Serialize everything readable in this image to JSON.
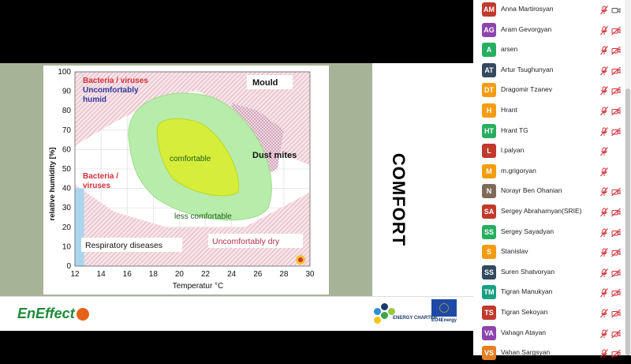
{
  "slide": {
    "title_vertical": "COMFORT",
    "logos": {
      "eneffect": "EnEffect",
      "charter": "ENERGY CHARTER",
      "eu": "EU4Energy"
    }
  },
  "chart_data": {
    "type": "area",
    "xlabel": "Temperatur °C",
    "ylabel": "relative humidity [%]",
    "xlim": [
      12,
      30
    ],
    "ylim": [
      0,
      100
    ],
    "xticks": [
      12,
      14,
      16,
      18,
      20,
      22,
      24,
      26,
      28,
      30
    ],
    "yticks": [
      0,
      10,
      20,
      30,
      40,
      50,
      60,
      70,
      80,
      90,
      100
    ],
    "grid": true,
    "regions": [
      {
        "name": "Bacteria / viruses",
        "color": "#d9534f"
      },
      {
        "name": "Uncomfortably humid",
        "color": "#2f3b9c"
      },
      {
        "name": "Mould",
        "color": "#000000"
      },
      {
        "name": "Dust mites",
        "color": "#000000"
      },
      {
        "name": "comfortable",
        "color": "#c8e63c"
      },
      {
        "name": "less comfortable",
        "color": "#9be08a"
      },
      {
        "name": "Bacteria / viruses",
        "color": "#d9534f"
      },
      {
        "name": "Respiratory diseases",
        "color": "#000000"
      },
      {
        "name": "Uncomfortably dry",
        "color": "#b0304a"
      }
    ],
    "labels": {
      "bacteria_top": "Bacteria / viruses",
      "humid": "Uncomfortably humid",
      "mould": "Mould",
      "dust": "Dust mites",
      "comfortable": "comfortable",
      "less": "less comfortable",
      "bacteria_mid": "Bacteria / viruses",
      "resp": "Respiratory diseases",
      "dry": "Uncomfortably dry"
    }
  },
  "participants": [
    {
      "initials": "AM",
      "name": "Anna Martirosyan",
      "color": "#c0392b",
      "mic": "muted",
      "cam": "on"
    },
    {
      "initials": "AG",
      "name": "Aram Gevorgyan",
      "color": "#8e44ad",
      "mic": "muted",
      "cam": "off"
    },
    {
      "initials": "A",
      "name": "arsen",
      "color": "#27ae60",
      "mic": "muted",
      "cam": "off"
    },
    {
      "initials": "AT",
      "name": "Artur Tsughunyan",
      "color": "#34495e",
      "mic": "muted",
      "cam": "off"
    },
    {
      "initials": "DT",
      "name": "Dragomir Tzanev",
      "color": "#f39c12",
      "mic": "muted",
      "cam": "off"
    },
    {
      "initials": "H",
      "name": "Hrant",
      "color": "#f39c12",
      "mic": "muted",
      "cam": "off"
    },
    {
      "initials": "HT",
      "name": "Hrant TG",
      "color": "#27ae60",
      "mic": "muted",
      "cam": "off"
    },
    {
      "initials": "L",
      "name": "l.palyan",
      "color": "#c0392b",
      "mic": "muted",
      "cam": "none"
    },
    {
      "initials": "M",
      "name": "m.grigoryan",
      "color": "#f39c12",
      "mic": "muted",
      "cam": "none"
    },
    {
      "initials": "N",
      "name": "Norayr Ben Ohanian",
      "color": "#7f6a5a",
      "mic": "muted",
      "cam": "off"
    },
    {
      "initials": "SA",
      "name": "Sergey Abrahamyan(SRIE)",
      "color": "#c0392b",
      "mic": "muted",
      "cam": "off"
    },
    {
      "initials": "SS",
      "name": "Sergey Sayadyan",
      "color": "#27ae60",
      "mic": "muted",
      "cam": "off"
    },
    {
      "initials": "S",
      "name": "Stanislav",
      "color": "#f39c12",
      "mic": "muted",
      "cam": "off"
    },
    {
      "initials": "SS",
      "name": "Suren Shatvoryan",
      "color": "#34495e",
      "mic": "muted",
      "cam": "off"
    },
    {
      "initials": "TM",
      "name": "Tigran Manukyan",
      "color": "#16a085",
      "mic": "muted",
      "cam": "off"
    },
    {
      "initials": "TS",
      "name": "Tigran Sekoyan",
      "color": "#c0392b",
      "mic": "muted",
      "cam": "off"
    },
    {
      "initials": "VA",
      "name": "Vahagn Atayan",
      "color": "#8e44ad",
      "mic": "muted",
      "cam": "off"
    },
    {
      "initials": "VS",
      "name": "Vahan Sargsyan",
      "color": "#e67e22",
      "mic": "muted",
      "cam": "off"
    }
  ]
}
